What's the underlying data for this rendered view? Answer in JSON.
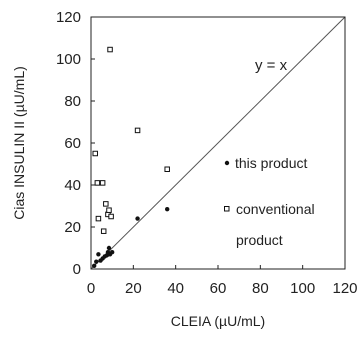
{
  "chart_data": {
    "type": "scatter",
    "title": "",
    "xlabel": "CLEIA (µU/mL)",
    "ylabel": "Cias INSULIN II (µU/mL)",
    "xlim": [
      0,
      120
    ],
    "ylim": [
      0,
      120
    ],
    "x_ticks": [
      "0",
      "20",
      "40",
      "60",
      "80",
      "100",
      "120"
    ],
    "y_ticks": [
      "0",
      "20",
      "40",
      "60",
      "80",
      "100",
      "120"
    ],
    "grid": false,
    "identity_line_label": "y = x",
    "legend_placement": "right",
    "series": [
      {
        "name": "this product",
        "marker": "filled-circle",
        "color": "#111111",
        "points": [
          {
            "x": 1.5,
            "y": 1.5
          },
          {
            "x": 2.5,
            "y": 3.5
          },
          {
            "x": 3.5,
            "y": 7
          },
          {
            "x": 4.5,
            "y": 4
          },
          {
            "x": 5.5,
            "y": 5
          },
          {
            "x": 6.5,
            "y": 6
          },
          {
            "x": 7.5,
            "y": 6.5
          },
          {
            "x": 8,
            "y": 8
          },
          {
            "x": 8.5,
            "y": 10
          },
          {
            "x": 9,
            "y": 7
          },
          {
            "x": 10,
            "y": 8
          },
          {
            "x": 22,
            "y": 24
          },
          {
            "x": 36,
            "y": 28.5
          }
        ]
      },
      {
        "name": "conventional product",
        "marker": "open-square",
        "color": "#111111",
        "points": [
          {
            "x": 2,
            "y": 55
          },
          {
            "x": 3,
            "y": 41
          },
          {
            "x": 3.5,
            "y": 24
          },
          {
            "x": 5.5,
            "y": 41
          },
          {
            "x": 6,
            "y": 18
          },
          {
            "x": 7,
            "y": 31
          },
          {
            "x": 8,
            "y": 26
          },
          {
            "x": 8.5,
            "y": 28
          },
          {
            "x": 9,
            "y": 104.5
          },
          {
            "x": 9.5,
            "y": 25
          },
          {
            "x": 22,
            "y": 66
          },
          {
            "x": 36,
            "y": 47.5
          }
        ]
      }
    ],
    "legend_entries": [
      {
        "label": "this product",
        "marker": "filled-circle"
      },
      {
        "label_lines": [
          "conventional",
          "product"
        ],
        "marker": "open-square"
      }
    ]
  }
}
